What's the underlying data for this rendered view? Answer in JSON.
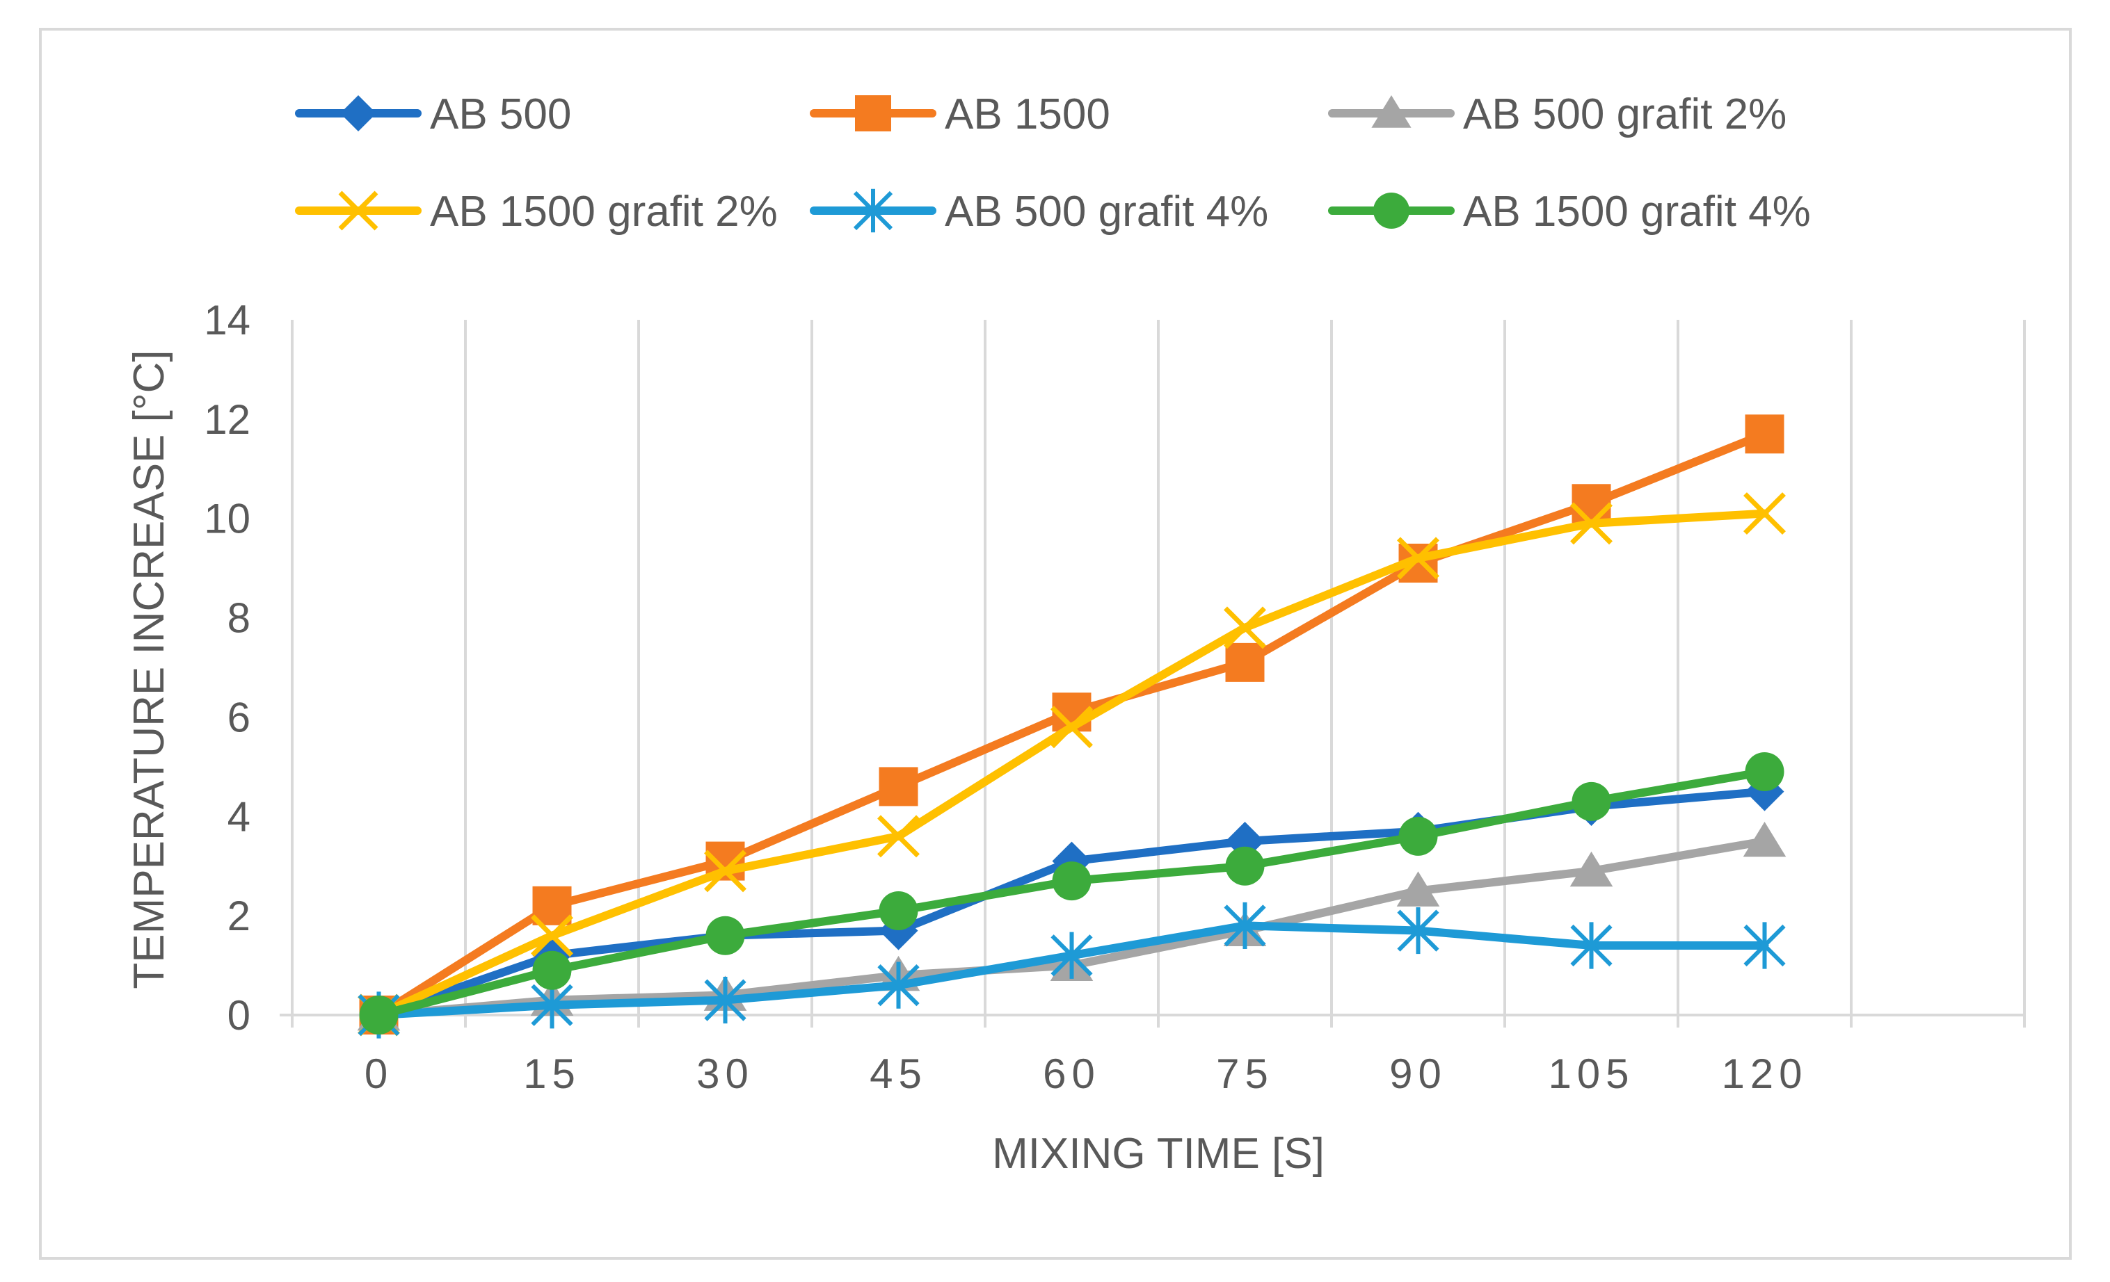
{
  "chart_data": {
    "type": "line",
    "title": "",
    "xlabel": "MIXING TIME [S]",
    "ylabel": "TEMPERATURE INCREASE [°C]",
    "categories": [
      "0",
      "15",
      "30",
      "45",
      "60",
      "75",
      "90",
      "105",
      "120"
    ],
    "x": [
      0,
      15,
      30,
      45,
      60,
      75,
      90,
      105,
      120
    ],
    "ylim": [
      0,
      14
    ],
    "yticks": [
      "0",
      "2",
      "4",
      "6",
      "8",
      "10",
      "12",
      "14"
    ],
    "grid": "vertical",
    "legend_position": "top",
    "series": [
      {
        "name": "AB 500",
        "color": "#1f6fc4",
        "marker": "diamond",
        "values": [
          0,
          1.2,
          1.6,
          1.7,
          3.1,
          3.5,
          3.7,
          4.2,
          4.5
        ]
      },
      {
        "name": "AB 1500",
        "color": "#f47b20",
        "marker": "square",
        "values": [
          0,
          2.2,
          3.1,
          4.6,
          6.1,
          7.1,
          9.1,
          10.3,
          11.7
        ]
      },
      {
        "name": "AB 500 grafit 2%",
        "color": "#a5a5a5",
        "marker": "triangle",
        "values": [
          0,
          0.3,
          0.4,
          0.8,
          1.0,
          1.7,
          2.5,
          2.9,
          3.5
        ]
      },
      {
        "name": "AB 1500 grafit 2%",
        "color": "#ffc000",
        "marker": "x",
        "values": [
          0,
          1.6,
          2.9,
          3.6,
          5.8,
          7.8,
          9.2,
          9.9,
          10.1
        ]
      },
      {
        "name": "AB 500 grafit 4%",
        "color": "#1e9ad6",
        "marker": "star",
        "values": [
          0,
          0.2,
          0.3,
          0.6,
          1.2,
          1.8,
          1.7,
          1.4,
          1.4
        ]
      },
      {
        "name": "AB 1500 grafit 4%",
        "color": "#3cab3c",
        "marker": "circle",
        "values": [
          0,
          0.9,
          1.6,
          2.1,
          2.7,
          3.0,
          3.6,
          4.3,
          4.9
        ]
      }
    ]
  }
}
